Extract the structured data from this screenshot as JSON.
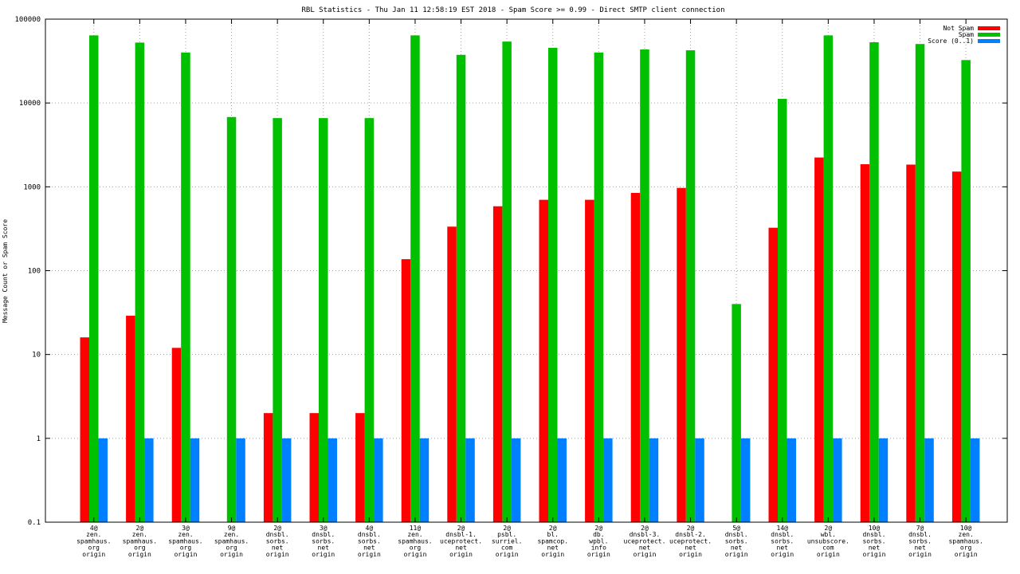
{
  "chart_data": {
    "type": "bar",
    "title": "RBL Statistics - Thu Jan 11 12:58:19 EST 2018 - Spam Score >= 0.99 - Direct SMTP client connection",
    "ylabel": "Message Count or Spam Score",
    "xlabel": "",
    "yscale": "log",
    "ylim": [
      0.1,
      100000
    ],
    "yticks": [
      "0.1",
      "1",
      "10",
      "100",
      "1000",
      "10000",
      "100000"
    ],
    "grid": true,
    "legend_position": "top-right",
    "categories": [
      [
        "4@",
        "zen.",
        "spamhaus.",
        "org",
        "origin"
      ],
      [
        "2@",
        "zen.",
        "spamhaus.",
        "org",
        "origin"
      ],
      [
        "3@",
        "zen.",
        "spamhaus.",
        "org",
        "origin"
      ],
      [
        "9@",
        "zen.",
        "spamhaus.",
        "org",
        "origin"
      ],
      [
        "2@",
        "dnsbl.",
        "sorbs.",
        "net",
        "origin"
      ],
      [
        "3@",
        "dnsbl.",
        "sorbs.",
        "net",
        "origin"
      ],
      [
        "4@",
        "dnsbl.",
        "sorbs.",
        "net",
        "origin"
      ],
      [
        "11@",
        "zen.",
        "spamhaus.",
        "org",
        "origin"
      ],
      [
        "2@",
        "dnsbl-1.",
        "uceprotect.",
        "net",
        "origin"
      ],
      [
        "2@",
        "psbl.",
        "surriel.",
        "com",
        "origin"
      ],
      [
        "2@",
        "bl.",
        "spamcop.",
        "net",
        "origin"
      ],
      [
        "2@",
        "db.",
        "wpbl.",
        "info",
        "origin"
      ],
      [
        "2@",
        "dnsbl-3.",
        "uceprotect.",
        "net",
        "origin"
      ],
      [
        "2@",
        "dnsbl-2.",
        "uceprotect.",
        "net",
        "origin"
      ],
      [
        "5@",
        "dnsbl.",
        "sorbs.",
        "net",
        "origin"
      ],
      [
        "14@",
        "dnsbl.",
        "sorbs.",
        "net",
        "origin"
      ],
      [
        "2@",
        "wbl.",
        "unsubscore.",
        "com",
        "origin"
      ],
      [
        "10@",
        "dnsbl.",
        "sorbs.",
        "net",
        "origin"
      ],
      [
        "7@",
        "dnsbl.",
        "sorbs.",
        "net",
        "origin"
      ],
      [
        "10@",
        "zen.",
        "spamhaus.",
        "org",
        "origin"
      ]
    ],
    "series": [
      {
        "name": "Not Spam",
        "color": "#ff0000",
        "values": [
          16,
          29,
          12,
          null,
          2,
          2,
          2,
          137,
          335,
          586,
          700,
          700,
          846,
          970,
          null,
          325,
          2236,
          1860,
          1840,
          1520
        ]
      },
      {
        "name": "Spam",
        "color": "#00c000",
        "values": [
          64000,
          52500,
          40000,
          6800,
          6600,
          6600,
          6600,
          64000,
          37500,
          54000,
          45500,
          40000,
          43500,
          42500,
          40,
          11200,
          64000,
          53000,
          50500,
          32500
        ]
      },
      {
        "name": "Score (0..1)",
        "color": "#0080ff",
        "values": [
          1,
          1,
          1,
          1,
          1,
          1,
          1,
          1,
          1,
          1,
          1,
          1,
          1,
          1,
          1,
          1,
          1,
          1,
          1,
          1
        ]
      }
    ]
  }
}
